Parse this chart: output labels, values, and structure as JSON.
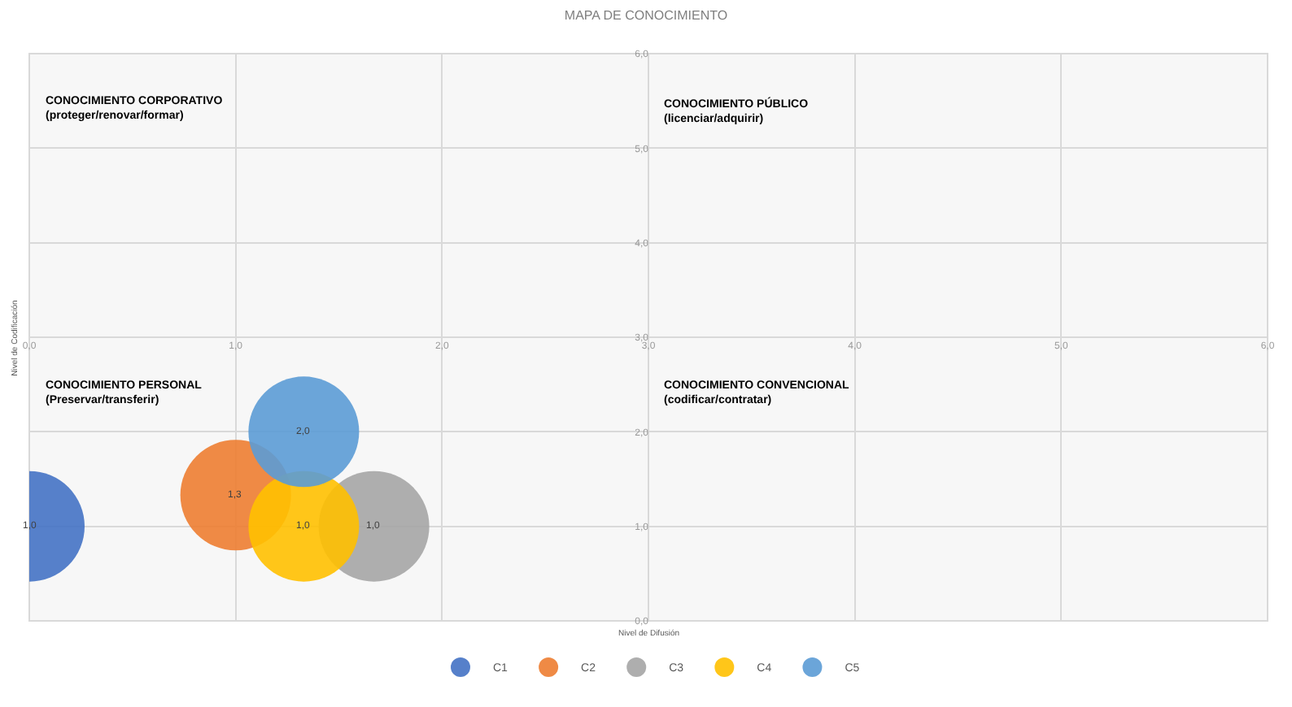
{
  "chart_data": {
    "type": "bubble",
    "title": "MAPA DE CONOCIMIENTO",
    "xlabel": "Nivel de Difusión",
    "ylabel": "Nivel de Codificación",
    "annotations": [
      "CONOCIMIENTO CORPORATIVO\n(proteger/renovar/formar)",
      "CONOCIMIENTO PÚBLICO\n(licenciar/adquirir)",
      "CONOCIMIENTO PERSONAL\n(Preservar/transferir)",
      "CONOCIMIENTO CONVENCIONAL\n(codificar/contratar)"
    ],
    "series": [
      {
        "name": "C1",
        "color": "#4472c4",
        "x": [
          0
        ],
        "values": [
          1.0
        ],
        "sizes": [
          1
        ],
        "value_labels": [
          "1,0"
        ]
      },
      {
        "name": "C2",
        "color": "#ed7d31",
        "x": [
          1.0
        ],
        "values": [
          1.33
        ],
        "sizes": [
          1
        ],
        "value_labels": [
          "1,3"
        ]
      },
      {
        "name": "C3",
        "color": "#a5a5a5",
        "x": [
          1.67
        ],
        "values": [
          1.0
        ],
        "sizes": [
          1
        ],
        "value_labels": [
          "1,0"
        ]
      },
      {
        "name": "C4",
        "color": "#ffc000",
        "x": [
          1.33
        ],
        "values": [
          1.0
        ],
        "sizes": [
          1
        ],
        "value_labels": [
          "1,0"
        ]
      },
      {
        "name": "C5",
        "color": "#5b9bd5",
        "x": [
          1.33
        ],
        "values": [
          2.0
        ],
        "sizes": [
          1
        ],
        "value_labels": [
          "2,0"
        ]
      }
    ],
    "xlim": [
      0,
      6
    ],
    "ylim": [
      0,
      6
    ],
    "xticks": [
      {
        "value": 0,
        "label": "0,0"
      },
      {
        "value": 1,
        "label": "1,0"
      },
      {
        "value": 2,
        "label": "2,0"
      },
      {
        "value": 3,
        "label": "3,0"
      },
      {
        "value": 4,
        "label": "4,0"
      },
      {
        "value": 5,
        "label": "5,0"
      },
      {
        "value": 6,
        "label": "6,0"
      }
    ],
    "yticks": [
      {
        "value": 0,
        "label": "0,0"
      },
      {
        "value": 1,
        "label": "1,0"
      },
      {
        "value": 2,
        "label": "2,0"
      },
      {
        "value": 3,
        "label": "3,0"
      },
      {
        "value": 4,
        "label": "4,0"
      },
      {
        "value": 5,
        "label": "5,0"
      },
      {
        "value": 6,
        "label": "6,0"
      }
    ],
    "grid": true,
    "legend": "bottom",
    "marker": "circle"
  }
}
